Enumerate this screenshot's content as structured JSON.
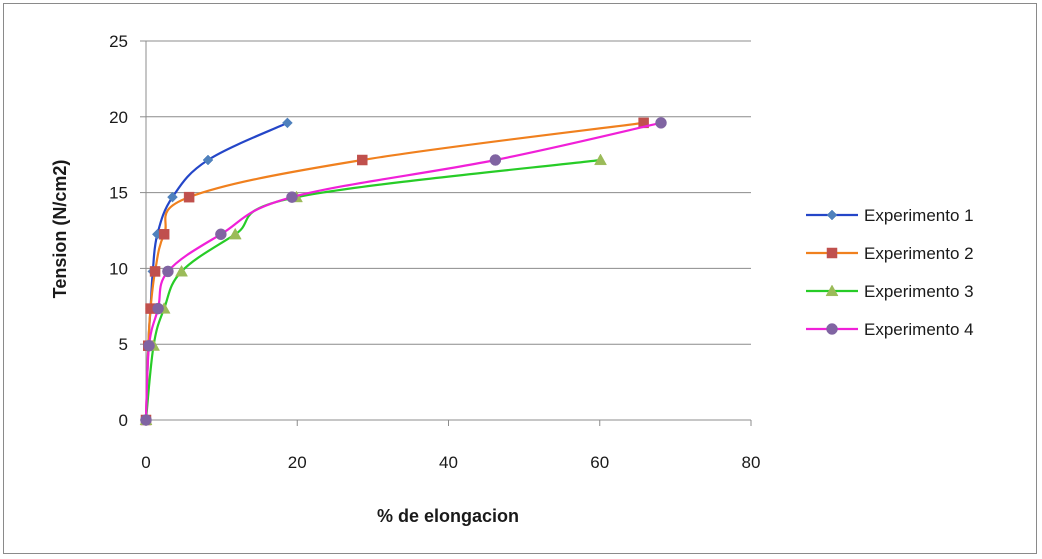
{
  "chart_data": {
    "type": "line",
    "title": "",
    "xlabel": "% de elongacion",
    "ylabel": "Tension (N/cm2)",
    "xlim": [
      0,
      80
    ],
    "ylim": [
      0,
      25
    ],
    "x_ticks": [
      "0",
      "20",
      "40",
      "60",
      "80"
    ],
    "y_ticks": [
      "0",
      "5",
      "10",
      "15",
      "20",
      "25"
    ],
    "grid": "horizontal",
    "legend_position": "right",
    "smooth": true,
    "series": [
      {
        "name": "Experimento 1",
        "color": "#2446c8",
        "marker": "diamond",
        "marker_color": "#4f81bd",
        "points": [
          [
            0,
            0
          ],
          [
            0.3,
            4.9
          ],
          [
            0.6,
            7.35
          ],
          [
            0.9,
            9.8
          ],
          [
            1.5,
            12.25
          ],
          [
            3.5,
            14.7
          ],
          [
            8.2,
            17.15
          ],
          [
            18.7,
            19.6
          ]
        ]
      },
      {
        "name": "Experimento 2",
        "color": "#f0801e",
        "marker": "square",
        "marker_color": "#c0504d",
        "points": [
          [
            0,
            0
          ],
          [
            0.3,
            4.9
          ],
          [
            0.6,
            7.35
          ],
          [
            1.2,
            9.8
          ],
          [
            2.4,
            12.25
          ],
          [
            5.7,
            14.7
          ],
          [
            28.6,
            17.15
          ],
          [
            65.8,
            19.6
          ]
        ]
      },
      {
        "name": "Experimento 3",
        "color": "#27cc27",
        "marker": "triangle",
        "marker_color": "#9bbb59",
        "points": [
          [
            0,
            0
          ],
          [
            1,
            4.9
          ],
          [
            2.4,
            7.35
          ],
          [
            4.7,
            9.8
          ],
          [
            11.8,
            12.25
          ],
          [
            19.9,
            14.7
          ],
          [
            60.1,
            17.15
          ]
        ]
      },
      {
        "name": "Experimento 4",
        "color": "#f020d8",
        "marker": "circle",
        "marker_color": "#8064a2",
        "points": [
          [
            0,
            0
          ],
          [
            0.4,
            4.9
          ],
          [
            1.6,
            7.35
          ],
          [
            2.9,
            9.8
          ],
          [
            9.9,
            12.25
          ],
          [
            19.3,
            14.7
          ],
          [
            46.2,
            17.15
          ],
          [
            68.1,
            19.6
          ]
        ]
      }
    ]
  }
}
